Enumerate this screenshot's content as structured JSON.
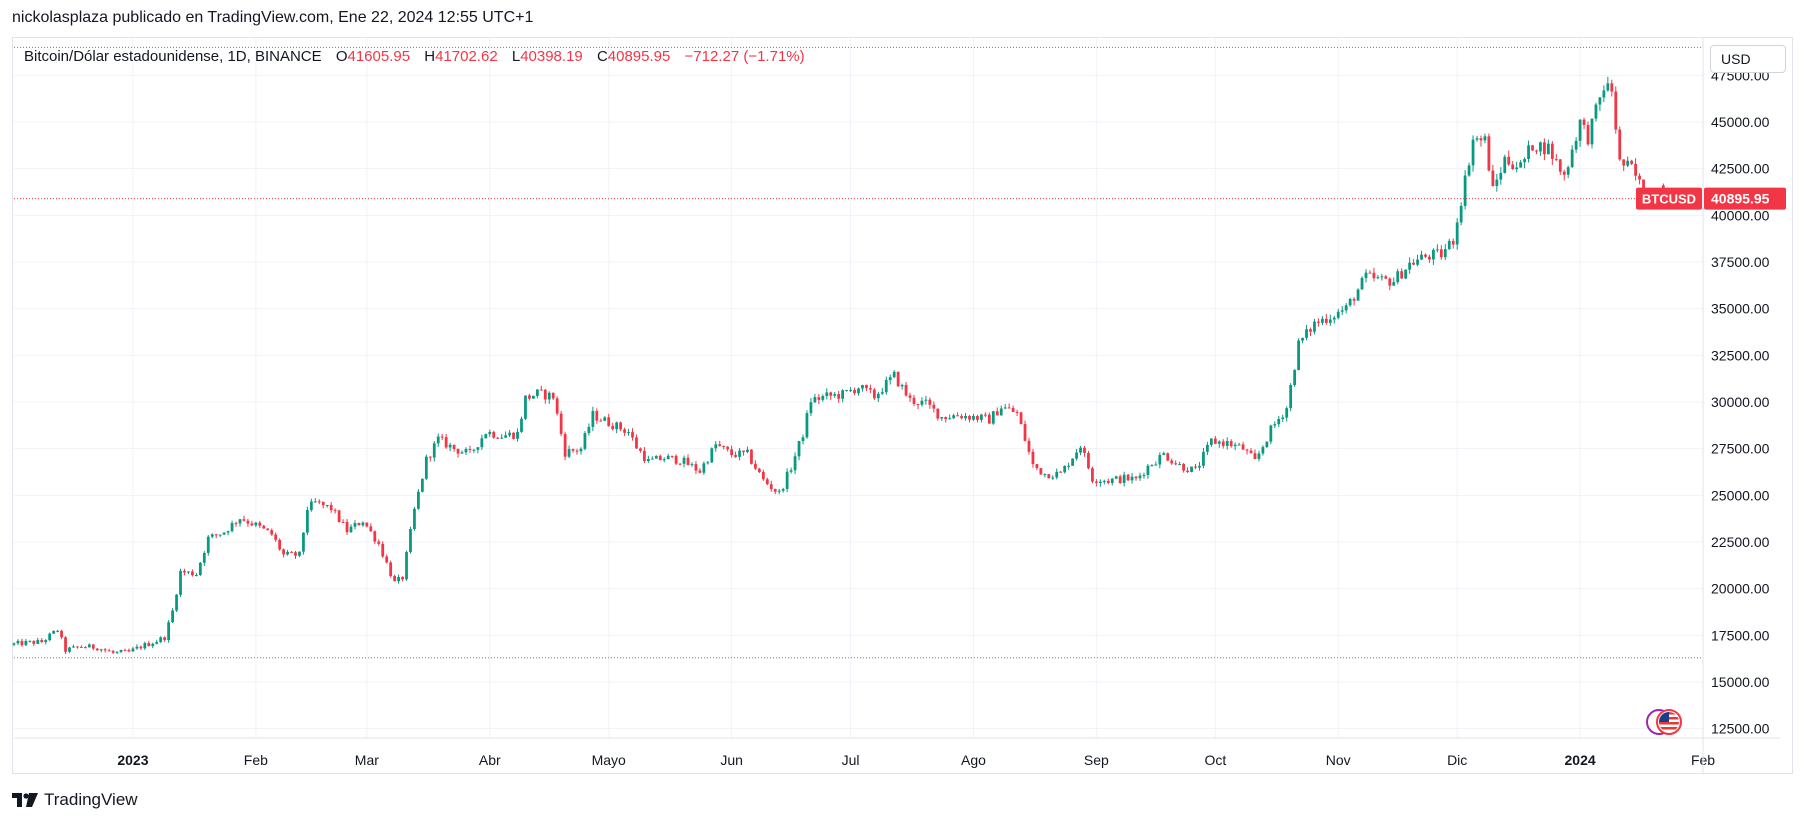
{
  "header": {
    "publisher": "nickolasplaza publicado en TradingView.com, Ene 22, 2024 12:55 UTC+1"
  },
  "legend": {
    "symbol": "Bitcoin/Dólar estadounidense, 1D, BINANCE",
    "o_label": "O",
    "o_value": "41605.95",
    "h_label": "H",
    "h_value": "41702.62",
    "l_label": "L",
    "l_value": "40398.19",
    "c_label": "C",
    "c_value": "40895.95",
    "change": "−712.27 (−1.71%)"
  },
  "currency_button": "USD",
  "price_tag": {
    "ticker": "BTCUSD",
    "price": "40895.95"
  },
  "footer": {
    "brand": "TradingView"
  },
  "colors": {
    "up": "#089981",
    "down": "#f23645",
    "grid": "#f0f3fa",
    "axis_text": "#131722",
    "price_line": "#f23645"
  },
  "chart_data": {
    "type": "candlestick",
    "title": "Bitcoin/Dólar estadounidense, 1D, BINANCE",
    "xlabel": "",
    "ylabel": "",
    "currency": "USD",
    "ylim": [
      12000,
      49500
    ],
    "y_ticks": [
      "12500.00",
      "15000.00",
      "17500.00",
      "20000.00",
      "22500.00",
      "25000.00",
      "27500.00",
      "30000.00",
      "32500.00",
      "35000.00",
      "37500.00",
      "40000.00",
      "42500.00",
      "45000.00",
      "47500.00"
    ],
    "x_ticks": [
      "2023",
      "Feb",
      "Mar",
      "Abr",
      "Mayo",
      "Jun",
      "Jul",
      "Ago",
      "Sep",
      "Oct",
      "Nov",
      "Dic",
      "2024",
      "Feb"
    ],
    "x_tick_dates": [
      "2023-01-01",
      "2023-02-01",
      "2023-03-01",
      "2023-04-01",
      "2023-05-01",
      "2023-06-01",
      "2023-07-01",
      "2023-08-01",
      "2023-09-01",
      "2023-10-01",
      "2023-11-01",
      "2023-12-01",
      "2024-01-01",
      "2024-02-01"
    ],
    "x_range": [
      "2022-12-02",
      "2024-02-01"
    ],
    "range_high": 49000,
    "range_low": 16300,
    "last": {
      "open": 41605.95,
      "high": 41702.62,
      "low": 40398.19,
      "close": 40895.95,
      "change": -712.27,
      "change_pct": -1.71
    },
    "closes": [
      [
        "2022-12-02",
        17000
      ],
      [
        "2022-12-06",
        17100
      ],
      [
        "2022-12-10",
        17150
      ],
      [
        "2022-12-14",
        17800
      ],
      [
        "2022-12-16",
        16700
      ],
      [
        "2022-12-20",
        16900
      ],
      [
        "2022-12-24",
        16850
      ],
      [
        "2022-12-28",
        16550
      ],
      [
        "2023-01-01",
        16600
      ],
      [
        "2023-01-04",
        16900
      ],
      [
        "2023-01-08",
        17200
      ],
      [
        "2023-01-10",
        17400
      ],
      [
        "2023-01-12",
        18800
      ],
      [
        "2023-01-14",
        20900
      ],
      [
        "2023-01-18",
        20800
      ],
      [
        "2023-01-21",
        22700
      ],
      [
        "2023-01-25",
        23050
      ],
      [
        "2023-01-29",
        23800
      ],
      [
        "2023-02-02",
        23400
      ],
      [
        "2023-02-06",
        22900
      ],
      [
        "2023-02-09",
        21800
      ],
      [
        "2023-02-13",
        21800
      ],
      [
        "2023-02-15",
        24300
      ],
      [
        "2023-02-17",
        24600
      ],
      [
        "2023-02-21",
        24300
      ],
      [
        "2023-02-25",
        23100
      ],
      [
        "2023-03-01",
        23650
      ],
      [
        "2023-03-05",
        22400
      ],
      [
        "2023-03-09",
        20300
      ],
      [
        "2023-03-11",
        20600
      ],
      [
        "2023-03-14",
        24200
      ],
      [
        "2023-03-17",
        26900
      ],
      [
        "2023-03-20",
        28000
      ],
      [
        "2023-03-24",
        27500
      ],
      [
        "2023-03-28",
        27200
      ],
      [
        "2023-04-01",
        28400
      ],
      [
        "2023-04-05",
        28200
      ],
      [
        "2023-04-09",
        28300
      ],
      [
        "2023-04-11",
        30200
      ],
      [
        "2023-04-14",
        30450
      ],
      [
        "2023-04-18",
        30300
      ],
      [
        "2023-04-21",
        27300
      ],
      [
        "2023-04-25",
        27500
      ],
      [
        "2023-04-28",
        29300
      ],
      [
        "2023-05-03",
        28800
      ],
      [
        "2023-05-07",
        28400
      ],
      [
        "2023-05-09",
        27600
      ],
      [
        "2023-05-12",
        26800
      ],
      [
        "2023-05-16",
        27000
      ],
      [
        "2023-05-20",
        26900
      ],
      [
        "2023-05-25",
        26300
      ],
      [
        "2023-05-29",
        27700
      ],
      [
        "2023-06-02",
        27200
      ],
      [
        "2023-06-06",
        27200
      ],
      [
        "2023-06-10",
        25800
      ],
      [
        "2023-06-14",
        25100
      ],
      [
        "2023-06-17",
        26500
      ],
      [
        "2023-06-20",
        28300
      ],
      [
        "2023-06-22",
        30100
      ],
      [
        "2023-06-26",
        30300
      ],
      [
        "2023-06-30",
        30400
      ],
      [
        "2023-07-04",
        30800
      ],
      [
        "2023-07-08",
        30300
      ],
      [
        "2023-07-13",
        31400
      ],
      [
        "2023-07-17",
        30100
      ],
      [
        "2023-07-21",
        29900
      ],
      [
        "2023-07-25",
        29200
      ],
      [
        "2023-07-29",
        29300
      ],
      [
        "2023-08-02",
        29200
      ],
      [
        "2023-08-06",
        29050
      ],
      [
        "2023-08-09",
        29750
      ],
      [
        "2023-08-13",
        29400
      ],
      [
        "2023-08-17",
        26600
      ],
      [
        "2023-08-20",
        26150
      ],
      [
        "2023-08-24",
        26150
      ],
      [
        "2023-08-29",
        27700
      ],
      [
        "2023-09-01",
        25900
      ],
      [
        "2023-09-05",
        25800
      ],
      [
        "2023-09-09",
        25900
      ],
      [
        "2023-09-12",
        25850
      ],
      [
        "2023-09-15",
        26550
      ],
      [
        "2023-09-19",
        27200
      ],
      [
        "2023-09-23",
        26600
      ],
      [
        "2023-09-27",
        26300
      ],
      [
        "2023-10-01",
        27900
      ],
      [
        "2023-10-05",
        27800
      ],
      [
        "2023-10-09",
        27500
      ],
      [
        "2023-10-12",
        26800
      ],
      [
        "2023-10-16",
        28500
      ],
      [
        "2023-10-20",
        29700
      ],
      [
        "2023-10-23",
        33100
      ],
      [
        "2023-10-27",
        34200
      ],
      [
        "2023-10-31",
        34600
      ],
      [
        "2023-11-04",
        35000
      ],
      [
        "2023-11-09",
        36700
      ],
      [
        "2023-11-13",
        36500
      ],
      [
        "2023-11-16",
        36500
      ],
      [
        "2023-11-20",
        37400
      ],
      [
        "2023-11-24",
        37800
      ],
      [
        "2023-11-28",
        37900
      ],
      [
        "2023-12-01",
        38700
      ],
      [
        "2023-12-04",
        41900
      ],
      [
        "2023-12-06",
        44100
      ],
      [
        "2023-12-09",
        44000
      ],
      [
        "2023-12-11",
        41300
      ],
      [
        "2023-12-14",
        43000
      ],
      [
        "2023-12-18",
        42600
      ],
      [
        "2023-12-21",
        43800
      ],
      [
        "2023-12-25",
        43600
      ],
      [
        "2023-12-29",
        42100
      ],
      [
        "2024-01-02",
        45000
      ],
      [
        "2024-01-04",
        44200
      ],
      [
        "2024-01-08",
        46900
      ],
      [
        "2024-01-10",
        46700
      ],
      [
        "2024-01-12",
        42800
      ],
      [
        "2024-01-15",
        42500
      ],
      [
        "2024-01-18",
        41250
      ],
      [
        "2024-01-22",
        40895.95
      ]
    ]
  }
}
